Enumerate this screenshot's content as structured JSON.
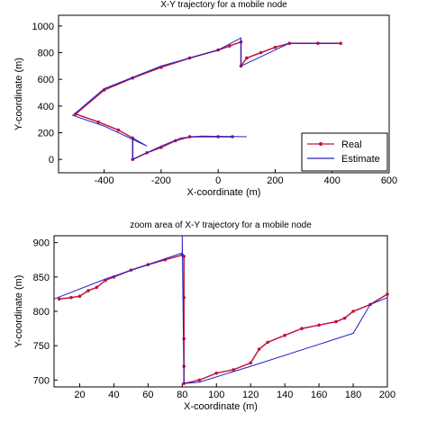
{
  "chart_data": [
    {
      "type": "line",
      "title": "X-Y trajectory for a mobile node",
      "x_label": "X-coordinate (m)",
      "y_label": "Y-coordinate (m)",
      "xlim": [
        -560,
        600
      ],
      "ylim": [
        -100,
        1080
      ],
      "xticks": [
        -400,
        -200,
        0,
        200,
        400,
        600
      ],
      "yticks": [
        0,
        200,
        400,
        600,
        800,
        1000
      ],
      "legend": "lower right",
      "series": [
        {
          "name": "Real",
          "color": "#c0143c",
          "markers": true,
          "x": [
            430,
            350,
            250,
            200,
            150,
            100,
            80,
            80,
            40,
            0,
            -100,
            -200,
            -300,
            -400,
            -500,
            -420,
            -350,
            -300,
            -300,
            -250,
            -200,
            -150,
            -100,
            0,
            50
          ],
          "values": [
            870,
            870,
            870,
            840,
            800,
            760,
            700,
            880,
            850,
            820,
            760,
            690,
            610,
            520,
            340,
            280,
            220,
            160,
            0,
            50,
            90,
            140,
            170,
            170,
            170
          ]
        },
        {
          "name": "Estimate",
          "color": "#2020c8",
          "markers": false,
          "x": [
            420,
            250,
            80,
            80,
            0,
            -200,
            -400,
            -510,
            -400,
            -250,
            -300,
            -300,
            -200,
            -130,
            -60,
            100
          ],
          "values": [
            870,
            870,
            700,
            910,
            820,
            700,
            530,
            330,
            250,
            100,
            160,
            0,
            100,
            160,
            175,
            170
          ]
        }
      ]
    },
    {
      "type": "line",
      "title": "zoom area of X-Y trajectory for a mobile node",
      "x_label": "X-coordinate (m)",
      "y_label": "Y-coordinate (m)",
      "xlim": [
        5,
        200
      ],
      "ylim": [
        690,
        910
      ],
      "xticks": [
        20,
        40,
        60,
        80,
        100,
        120,
        140,
        160,
        180,
        200
      ],
      "yticks": [
        700,
        750,
        800,
        850,
        900
      ],
      "series": [
        {
          "name": "Real",
          "color": "#c0143c",
          "markers": true,
          "x": [
            8,
            15,
            20,
            25,
            30,
            35,
            40,
            50,
            60,
            70,
            80,
            81,
            81,
            81,
            81,
            81,
            90,
            100,
            110,
            120,
            125,
            130,
            140,
            150,
            160,
            170,
            175,
            180,
            190,
            200
          ],
          "values": [
            818,
            820,
            822,
            830,
            835,
            845,
            850,
            860,
            868,
            875,
            882,
            880,
            820,
            760,
            720,
            695,
            700,
            710,
            715,
            725,
            745,
            755,
            765,
            775,
            780,
            785,
            790,
            800,
            810,
            825
          ]
        },
        {
          "name": "Estimate",
          "color": "#2020c8",
          "markers": false,
          "x": [
            5,
            35,
            80,
            80,
            81,
            90,
            120,
            160,
            180,
            190,
            200
          ],
          "values": [
            818,
            847,
            885,
            910,
            695,
            697,
            720,
            752,
            768,
            810,
            820
          ]
        }
      ]
    }
  ]
}
